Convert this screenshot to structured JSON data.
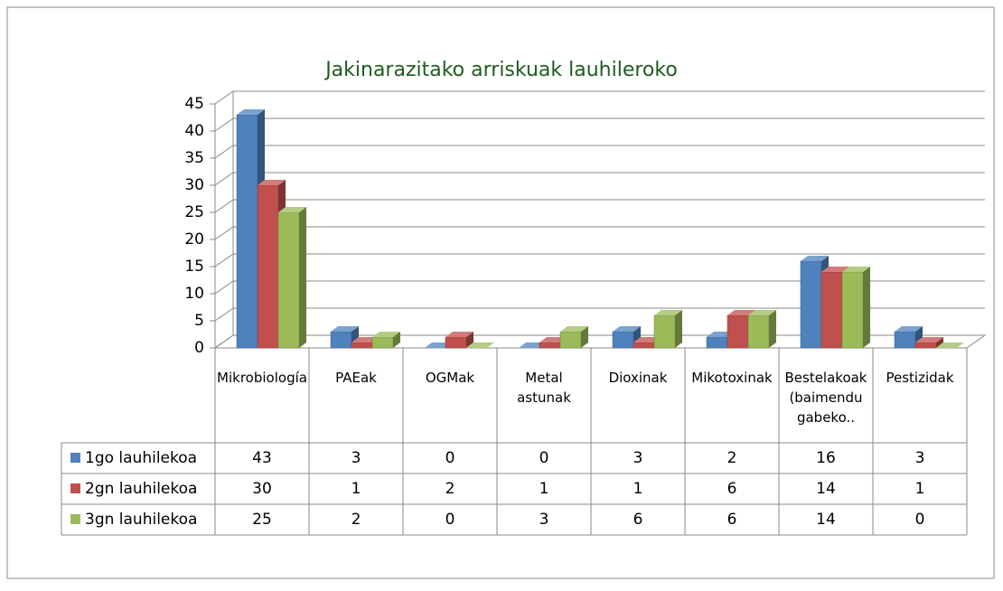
{
  "chart_data": {
    "type": "bar3d",
    "title": "Jakinarazitako arriskuak lauhileroko",
    "categories": [
      "Mikrobiología",
      "PAEak",
      "OGMak",
      "Metal astunak",
      "Dioxinak",
      "Mikotoxinak",
      "Bestelakoak (baimendu gabeko..",
      "Pestizidak"
    ],
    "series": [
      {
        "name": "1go lauhilekoa",
        "color": "#4f81bd",
        "values": [
          43,
          3,
          0,
          0,
          3,
          2,
          16,
          3
        ]
      },
      {
        "name": "2gn lauhilekoa",
        "color": "#c0504d",
        "values": [
          30,
          1,
          2,
          1,
          1,
          6,
          14,
          1
        ]
      },
      {
        "name": "3gn lauhilekoa",
        "color": "#9bbb59",
        "values": [
          25,
          2,
          0,
          3,
          6,
          6,
          14,
          0
        ]
      }
    ],
    "ylim": [
      0,
      45
    ],
    "yticks": [
      0,
      5,
      10,
      15,
      20,
      25,
      30,
      35,
      40,
      45
    ],
    "grid": true,
    "data_table": true
  }
}
